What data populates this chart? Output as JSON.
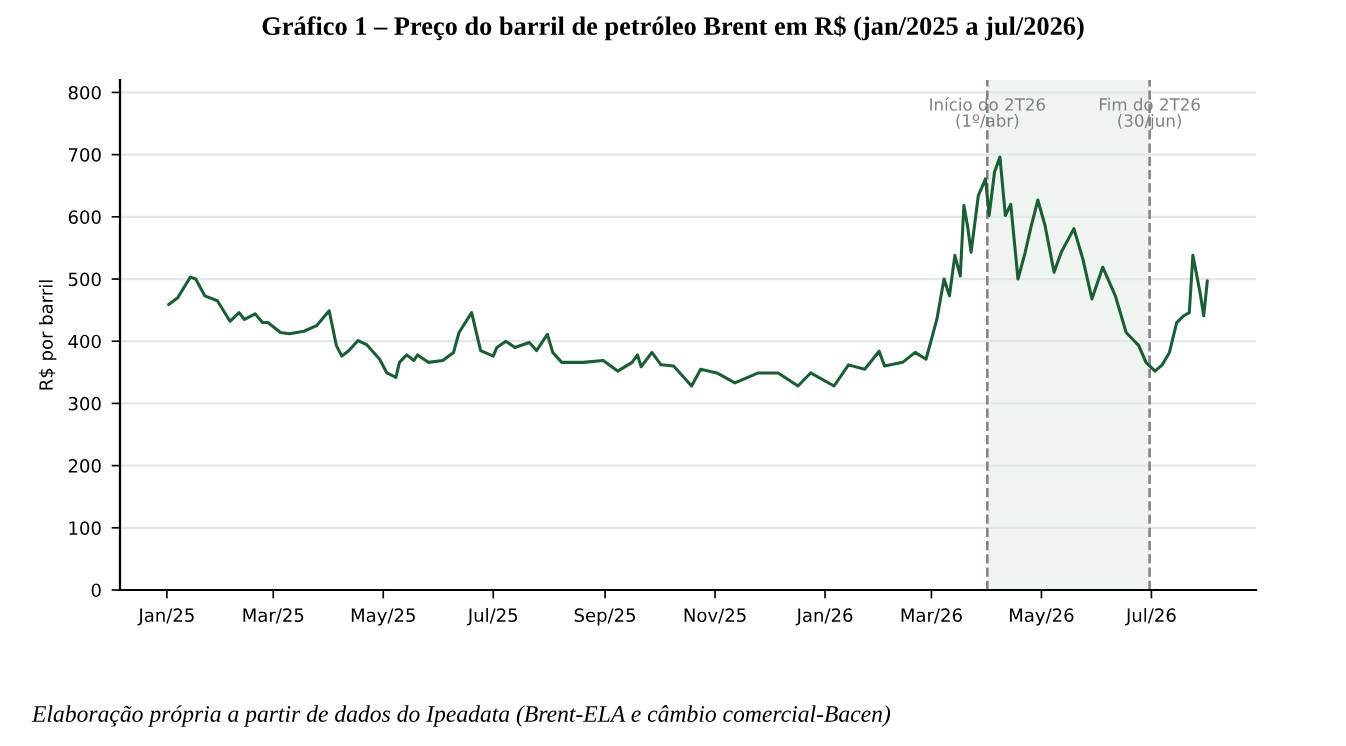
{
  "chart_data": {
    "type": "line",
    "title": "Gráfico 1 – Preço do barril de petróleo Brent em R$ (jan/2025 a jul/2026)",
    "ylabel": "R$ por barril",
    "x": [
      "2025-01-02",
      "2025-01-07",
      "2025-01-14",
      "2025-01-17",
      "2025-01-22",
      "2025-01-29",
      "2025-02-05",
      "2025-02-10",
      "2025-02-13",
      "2025-02-19",
      "2025-02-23",
      "2025-02-26",
      "2025-03-05",
      "2025-03-10",
      "2025-03-18",
      "2025-03-25",
      "2025-04-01",
      "2025-04-05",
      "2025-04-08",
      "2025-04-12",
      "2025-04-17",
      "2025-04-22",
      "2025-04-29",
      "2025-05-03",
      "2025-05-08",
      "2025-05-10",
      "2025-05-14",
      "2025-05-18",
      "2025-05-20",
      "2025-05-26",
      "2025-06-03",
      "2025-06-09",
      "2025-06-12",
      "2025-06-19",
      "2025-06-24",
      "2025-07-01",
      "2025-07-03",
      "2025-07-08",
      "2025-07-13",
      "2025-07-21",
      "2025-07-25",
      "2025-07-31",
      "2025-08-03",
      "2025-08-08",
      "2025-08-20",
      "2025-08-31",
      "2025-09-08",
      "2025-09-16",
      "2025-09-19",
      "2025-09-21",
      "2025-09-27",
      "2025-10-02",
      "2025-10-09",
      "2025-10-19",
      "2025-10-24",
      "2025-11-02",
      "2025-11-12",
      "2025-11-25",
      "2025-12-06",
      "2025-12-17",
      "2025-12-24",
      "2026-01-06",
      "2026-01-14",
      "2026-01-23",
      "2026-01-31",
      "2026-02-03",
      "2026-02-13",
      "2026-02-20",
      "2026-02-26",
      "2026-03-01",
      "2026-03-04",
      "2026-03-08",
      "2026-03-11",
      "2026-03-14",
      "2026-03-17",
      "2026-03-19",
      "2026-03-21",
      "2026-03-23",
      "2026-03-27",
      "2026-03-31",
      "2026-04-02",
      "2026-04-05",
      "2026-04-08",
      "2026-04-11",
      "2026-04-14",
      "2026-04-18",
      "2026-04-22",
      "2026-04-25",
      "2026-04-29",
      "2026-05-03",
      "2026-05-08",
      "2026-05-12",
      "2026-05-19",
      "2026-05-24",
      "2026-05-29",
      "2026-06-04",
      "2026-06-11",
      "2026-06-17",
      "2026-06-24",
      "2026-06-28",
      "2026-07-03",
      "2026-07-07",
      "2026-07-11",
      "2026-07-15",
      "2026-07-19",
      "2026-07-22",
      "2026-07-24",
      "2026-07-28",
      "2026-07-30",
      "2026-08-01"
    ],
    "series": [
      {
        "color": "#1b5e35",
        "values": [
          459,
          470,
          503,
          500,
          473,
          465,
          432,
          446,
          435,
          444,
          430,
          430,
          414,
          412,
          416,
          425,
          449,
          393,
          376,
          385,
          401,
          394,
          371,
          349,
          342,
          366,
          378,
          369,
          378,
          366,
          369,
          382,
          414,
          446,
          385,
          376,
          390,
          400,
          390,
          398,
          385,
          411,
          382,
          366,
          366,
          369,
          352,
          366,
          378,
          359,
          382,
          362,
          360,
          328,
          355,
          349,
          333,
          349,
          349,
          328,
          349,
          328,
          362,
          355,
          384,
          360,
          366,
          382,
          371,
          403,
          435,
          500,
          473,
          538,
          505,
          618,
          586,
          543,
          634,
          661,
          602,
          672,
          696,
          602,
          620,
          500,
          543,
          581,
          627,
          586,
          511,
          543,
          581,
          532,
          468,
          519,
          473,
          414,
          393,
          366,
          352,
          362,
          382,
          430,
          441,
          446,
          538,
          478,
          441,
          497
        ]
      }
    ],
    "xlim": [
      "2024-12-06",
      "2026-08-28"
    ],
    "xticks": [
      {
        "value": "2025-01-01",
        "label": "Jan/25"
      },
      {
        "value": "2025-03-01",
        "label": "Mar/25"
      },
      {
        "value": "2025-05-01",
        "label": "May/25"
      },
      {
        "value": "2025-07-01",
        "label": "Jul/25"
      },
      {
        "value": "2025-09-01",
        "label": "Sep/25"
      },
      {
        "value": "2025-11-01",
        "label": "Nov/25"
      },
      {
        "value": "2026-01-01",
        "label": "Jan/26"
      },
      {
        "value": "2026-03-01",
        "label": "Mar/26"
      },
      {
        "value": "2026-05-01",
        "label": "May/26"
      },
      {
        "value": "2026-07-01",
        "label": "Jul/26"
      }
    ],
    "ylim": [
      0,
      820
    ],
    "yticks": [
      0,
      100,
      200,
      300,
      400,
      500,
      600,
      700,
      800
    ],
    "grid": "y",
    "marker": "none",
    "line_style": "solid",
    "bands": [
      {
        "axis": "x",
        "from": "2026-04-01",
        "to": "2026-06-30",
        "color": "#eef4ef"
      }
    ],
    "ref_lines": [
      {
        "axis": "x",
        "value": "2026-04-01",
        "label": "Início do 2T26\n(1º/abr)",
        "color": "#808080",
        "line_style": "dashed"
      },
      {
        "axis": "x",
        "value": "2026-06-30",
        "label": "Fim do 2T26\n(30/jun)",
        "color": "#808080",
        "line_style": "dashed"
      }
    ],
    "annotations": [
      "Elaboração própria a partir de dados do Ipeadata (Brent-ELA e câmbio comercial-Bacen)"
    ]
  }
}
